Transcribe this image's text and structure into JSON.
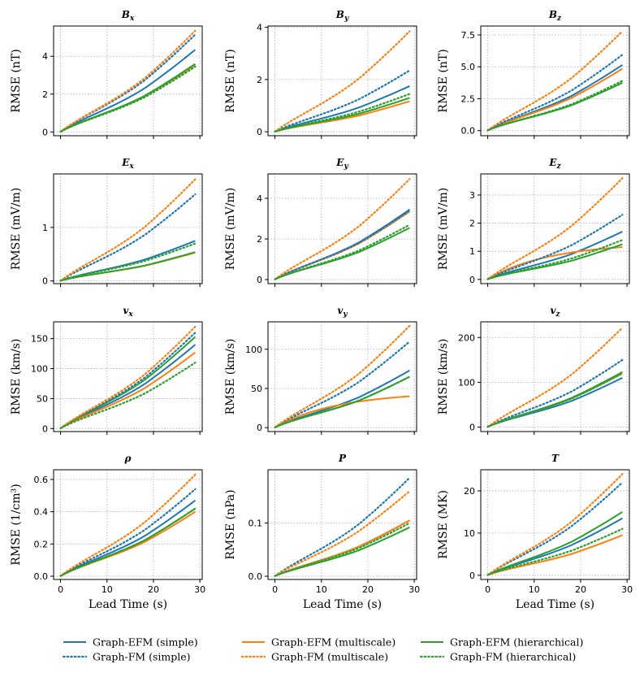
{
  "chart_data": {
    "type": "line",
    "x_label": "Lead Time (s)",
    "x_ticks": [
      "0",
      "10",
      "20",
      "30"
    ],
    "xlim": [
      -1.5,
      30.5
    ],
    "legend": [
      {
        "key": "efm_simple",
        "label": "Graph-EFM (simple)",
        "color": "#1f77b4",
        "style": "solid"
      },
      {
        "key": "efm_multiscale",
        "label": "Graph-EFM (multiscale)",
        "color": "#ff7f0e",
        "style": "solid"
      },
      {
        "key": "efm_hier",
        "label": "Graph-EFM (hierarchical)",
        "color": "#2ca02c",
        "style": "solid"
      },
      {
        "key": "fm_simple",
        "label": "Graph-FM (simple)",
        "color": "#1f77b4",
        "style": "dotted"
      },
      {
        "key": "fm_multiscale",
        "label": "Graph-FM (multiscale)",
        "color": "#ff7f0e",
        "style": "dotted"
      },
      {
        "key": "fm_hier",
        "label": "Graph-FM (hierarchical)",
        "color": "#2ca02c",
        "style": "dotted"
      }
    ],
    "panels": [
      {
        "title": "Bx",
        "title_main": "B",
        "title_sub": "x",
        "ylabel": "RMSE (nT)",
        "ylim": [
          -0.2,
          5.6
        ],
        "yticks": [
          0,
          2,
          4
        ],
        "ytick_labels": [
          "0",
          "2",
          "4"
        ],
        "series": {
          "efm_simple": 4.35,
          "efm_multiscale": 3.55,
          "efm_hier": 3.6,
          "fm_simple": 5.15,
          "fm_multiscale": 5.35,
          "fm_hier": 3.45
        },
        "mid": 1.2
      },
      {
        "title": "By",
        "title_main": "B",
        "title_sub": "y",
        "ylabel": "RMSE (nT)",
        "ylim": [
          -0.15,
          4.05
        ],
        "yticks": [
          0,
          2,
          4
        ],
        "ytick_labels": [
          "0",
          "2",
          "4"
        ],
        "series": {
          "efm_simple": 1.75,
          "efm_multiscale": 1.17,
          "efm_hier": 1.3,
          "fm_simple": 2.35,
          "fm_multiscale": 3.85,
          "fm_hier": 1.45
        },
        "mid": 0.6
      },
      {
        "title": "Bz",
        "title_main": "B",
        "title_sub": "z",
        "ylabel": "RMSE (nT)",
        "ylim": [
          -0.4,
          8.2
        ],
        "yticks": [
          0,
          2.5,
          5,
          7.5
        ],
        "ytick_labels": [
          "0.0",
          "2.5",
          "5.0",
          "7.5"
        ],
        "series": {
          "efm_simple": 5.15,
          "efm_multiscale": 4.85,
          "efm_hier": 3.75,
          "fm_simple": 5.95,
          "fm_multiscale": 7.8,
          "fm_hier": 3.9
        },
        "mid": 1.8
      },
      {
        "title": "Ex",
        "title_main": "E",
        "title_sub": "x",
        "ylabel": "RMSE (mV/m)",
        "ylim": [
          -0.05,
          2.0
        ],
        "yticks": [
          0,
          1
        ],
        "ytick_labels": [
          "0",
          "1"
        ],
        "series": {
          "efm_simple": 0.75,
          "efm_multiscale": 0.53,
          "efm_hier": 0.54,
          "fm_simple": 1.62,
          "fm_multiscale": 1.9,
          "fm_hier": 0.7
        },
        "mid": 0.33
      },
      {
        "title": "Ey",
        "title_main": "E",
        "title_sub": "y",
        "ylabel": "RMSE (mV/m)",
        "ylim": [
          -0.2,
          5.2
        ],
        "yticks": [
          0,
          2,
          4
        ],
        "ytick_labels": [
          "0",
          "2",
          "4"
        ],
        "series": {
          "efm_simple": 3.45,
          "efm_multiscale": 3.35,
          "efm_hier": 2.55,
          "fm_simple": 3.4,
          "fm_multiscale": 4.95,
          "fm_hier": 2.7
        },
        "mid": 1.2
      },
      {
        "title": "Ez",
        "title_main": "E",
        "title_sub": "z",
        "ylabel": "RMSE (mV/m)",
        "ylim": [
          -0.15,
          3.75
        ],
        "yticks": [
          0,
          1,
          2,
          3
        ],
        "ytick_labels": [
          "0",
          "1",
          "2",
          "3"
        ],
        "series": {
          "efm_simple": 1.7,
          "efm_multiscale": 1.15,
          "efm_hier": 1.25,
          "fm_simple": 2.3,
          "fm_multiscale": 3.6,
          "fm_hier": 1.4
        },
        "mid": 0.75
      },
      {
        "title": "vx",
        "title_main": "v",
        "title_sub": "x",
        "ylabel": "RMSE (km/s)",
        "ylim": [
          -5,
          178
        ],
        "yticks": [
          0,
          50,
          100,
          150
        ],
        "ytick_labels": [
          "0",
          "50",
          "100",
          "150"
        ],
        "series": {
          "efm_simple": 140,
          "efm_multiscale": 127,
          "efm_hier": 153,
          "fm_simple": 160,
          "fm_multiscale": 170,
          "fm_hier": 110
        },
        "mid": 40
      },
      {
        "title": "vy",
        "title_main": "v",
        "title_sub": "y",
        "ylabel": "RMSE (km/s)",
        "ylim": [
          -5,
          135
        ],
        "yticks": [
          0,
          50,
          100
        ],
        "ytick_labels": [
          "0",
          "50",
          "100"
        ],
        "series": {
          "efm_simple": 73,
          "efm_multiscale": 40,
          "efm_hier": 65,
          "fm_simple": 110,
          "fm_multiscale": 130,
          "fm_hier": 65
        },
        "mid": 33
      },
      {
        "title": "vz",
        "title_main": "v",
        "title_sub": "z",
        "ylabel": "RMSE (km/s)",
        "ylim": [
          -10,
          235
        ],
        "yticks": [
          0,
          100,
          200
        ],
        "ytick_labels": [
          "0",
          "100",
          "200"
        ],
        "series": {
          "efm_simple": 110,
          "efm_multiscale": 120,
          "efm_hier": 123,
          "fm_simple": 150,
          "fm_multiscale": 222,
          "fm_hier": 120
        },
        "mid": 50
      },
      {
        "title": "ρ",
        "title_main": "ρ",
        "title_sub": "",
        "ylabel": "RMSE (1/cm³)",
        "ylim": [
          -0.02,
          0.66
        ],
        "yticks": [
          0,
          0.2,
          0.4,
          0.6
        ],
        "ytick_labels": [
          "0.0",
          "0.2",
          "0.4",
          "0.6"
        ],
        "series": {
          "efm_simple": 0.47,
          "efm_multiscale": 0.4,
          "efm_hier": 0.42,
          "fm_simple": 0.54,
          "fm_multiscale": 0.63,
          "fm_hier": 0.42
        },
        "mid": 0.16
      },
      {
        "title": "P",
        "title_main": "P",
        "title_sub": "",
        "ylabel": "RMSE (nPa)",
        "ylim": [
          -0.006,
          0.2
        ],
        "yticks": [
          0,
          0.1
        ],
        "ytick_labels": [
          "0.0",
          "0.1"
        ],
        "series": {
          "efm_simple": 0.105,
          "efm_multiscale": 0.105,
          "efm_hier": 0.092,
          "fm_simple": 0.185,
          "fm_multiscale": 0.16,
          "fm_hier": 0.1
        },
        "mid": 0.035
      },
      {
        "title": "T",
        "title_main": "T",
        "title_sub": "",
        "ylabel": "RMSE (MK)",
        "ylim": [
          -1,
          25
        ],
        "yticks": [
          0,
          10,
          20
        ],
        "ytick_labels": [
          "0",
          "10",
          "20"
        ],
        "series": {
          "efm_simple": 13.5,
          "efm_multiscale": 9.5,
          "efm_hier": 15,
          "fm_simple": 22,
          "fm_multiscale": 24,
          "fm_hier": 11
        },
        "mid": 4.5
      }
    ]
  }
}
